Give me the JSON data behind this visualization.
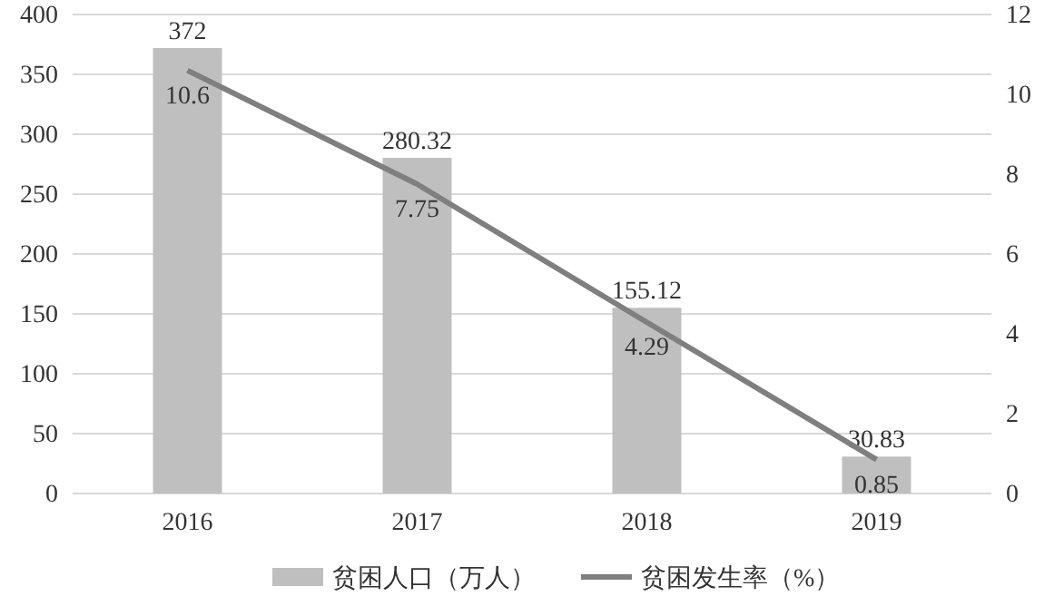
{
  "chart_data": {
    "type": "bar",
    "categories": [
      "2016",
      "2017",
      "2018",
      "2019"
    ],
    "series": [
      {
        "name": "贫困人口（万人）",
        "color": "#bfbfbf",
        "values": [
          372,
          280.32,
          155.12,
          30.83
        ]
      },
      {
        "name": "贫困发生率（%）",
        "type": "line",
        "axis": "y2",
        "color": "#7f7f7f",
        "values": [
          10.6,
          7.75,
          4.29,
          0.85
        ]
      }
    ],
    "ylim": [
      0,
      400
    ],
    "yticks": [
      0,
      50,
      100,
      150,
      200,
      250,
      300,
      350,
      400
    ],
    "y2lim": [
      0,
      12
    ],
    "y2ticks": [
      0,
      2,
      4,
      6,
      8,
      10,
      12
    ],
    "grid": "y",
    "legend": "bottom",
    "data_labels": true,
    "marker": "none"
  }
}
